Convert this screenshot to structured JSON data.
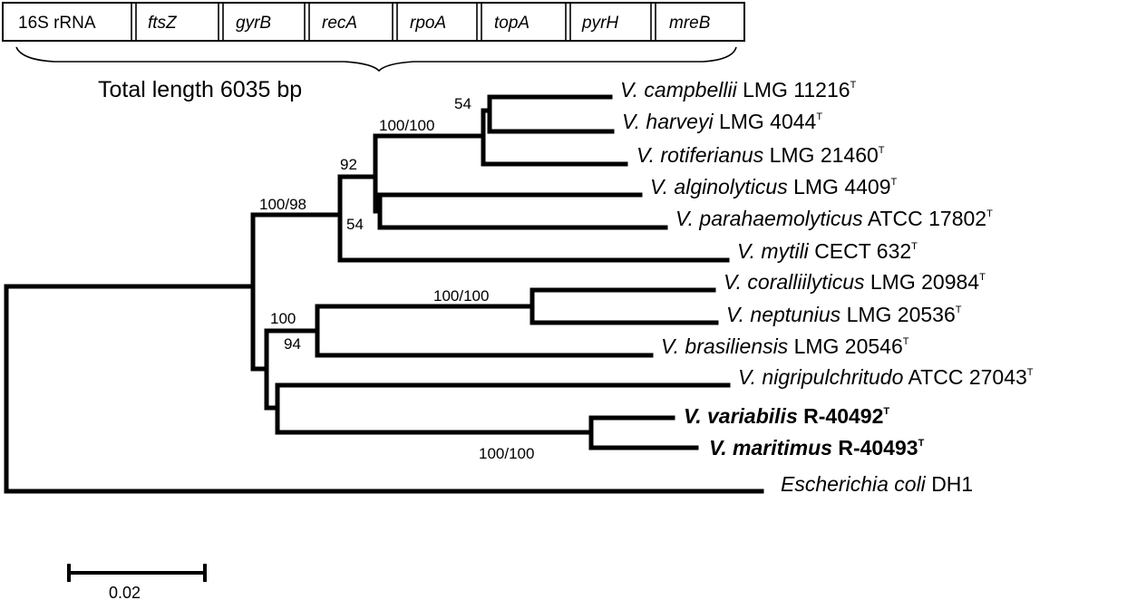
{
  "genes": [
    {
      "name": "16S rRNA",
      "italic": false
    },
    {
      "name": "ftsZ",
      "italic": true
    },
    {
      "name": "gyrB",
      "italic": true
    },
    {
      "name": "recA",
      "italic": true
    },
    {
      "name": "rpoA",
      "italic": true
    },
    {
      "name": "topA",
      "italic": true
    },
    {
      "name": "pyrH",
      "italic": true
    },
    {
      "name": "mreB",
      "italic": true
    }
  ],
  "total_length": "Total length 6035 bp",
  "taxa": [
    {
      "genus": "V. campbellii",
      "strain": "LMG 11216",
      "sup": "T",
      "bold": false
    },
    {
      "genus": "V. harveyi",
      "strain": "LMG 4044",
      "sup": "T",
      "bold": false
    },
    {
      "genus": "V. rotiferianus",
      "strain": "LMG 21460",
      "sup": "T",
      "bold": false
    },
    {
      "genus": "V. alginolyticus",
      "strain": "LMG 4409",
      "sup": "T",
      "bold": false
    },
    {
      "genus": "V. parahaemolyticus",
      "strain": "ATCC 17802",
      "sup": "T",
      "bold": false
    },
    {
      "genus": "V. mytili",
      "strain": "CECT 632",
      "sup": "T",
      "bold": false
    },
    {
      "genus": "V. coralliilyticus",
      "strain": "LMG 20984",
      "sup": "T",
      "bold": false
    },
    {
      "genus": "V. neptunius",
      "strain": "LMG 20536",
      "sup": "T",
      "bold": false
    },
    {
      "genus": "V. brasiliensis",
      "strain": "LMG 20546",
      "sup": "T",
      "bold": false
    },
    {
      "genus": "V. nigripulchritudo",
      "strain": "ATCC 27043",
      "sup": "T",
      "bold": false
    },
    {
      "genus": "V. variabilis",
      "strain": "R-40492",
      "sup": "T",
      "bold": true
    },
    {
      "genus": "V. maritimus",
      "strain": "R-40493",
      "sup": "T",
      "bold": true
    },
    {
      "genus": "Escherichia coli",
      "strain": "DH1",
      "sup": "",
      "bold": false
    }
  ],
  "support_values": {
    "campbellii_harveyi": "54",
    "harveyi_group": "100/100",
    "harveyi_alginolyticus": "92",
    "alginolyticus_parahaemolyticus": "54",
    "main_clade_a": "100/98",
    "coralliilyticus_neptunius": "100/100",
    "coralliilyticus_brasiliensis_top": "100",
    "coralliilyticus_brasiliensis_bottom": "94",
    "variabilis_maritimus": "100/100"
  },
  "scale_bar": {
    "label": "0.02"
  }
}
